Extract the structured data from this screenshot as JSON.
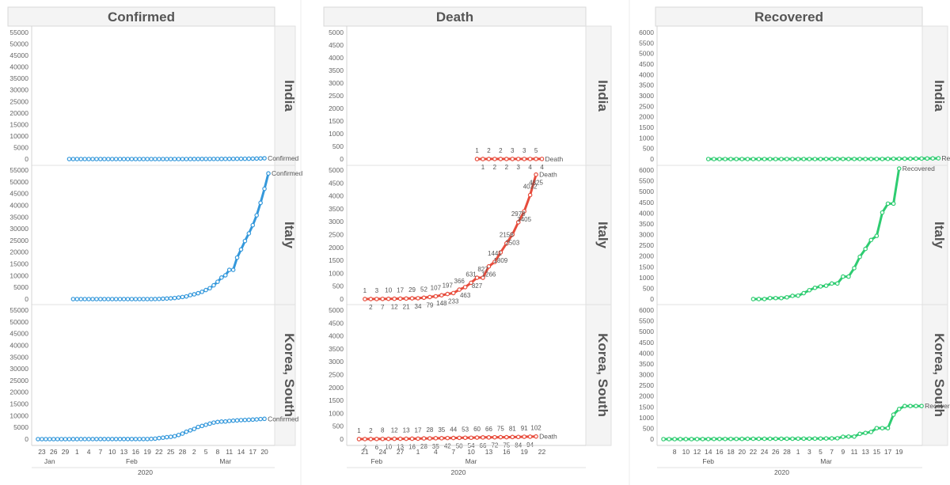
{
  "header": {
    "panels": [
      "Confirmed",
      "Death",
      "Recovered"
    ]
  },
  "rows": [
    "India",
    "Italy",
    "Korea, South"
  ],
  "colors": {
    "Confirmed": "#3498db",
    "Death": "#e74c3c",
    "Recovered": "#2ecc71"
  },
  "chart_data": [
    {
      "type": "line",
      "metric": "Confirmed",
      "title": "Confirmed",
      "ylim": [
        0,
        55000
      ],
      "yticks": [
        0,
        5000,
        10000,
        15000,
        20000,
        25000,
        30000,
        35000,
        40000,
        45000,
        50000,
        55000
      ],
      "xaxis": {
        "day_labels": [
          "23",
          "26",
          "29",
          "1",
          "4",
          "7",
          "10",
          "13",
          "16",
          "19",
          "22",
          "25",
          "28",
          "2",
          "5",
          "8",
          "11",
          "14",
          "17",
          "20"
        ],
        "month_labels": [
          "Jan",
          "Feb",
          "Mar"
        ],
        "year_label": "2020"
      },
      "series": [
        {
          "name": "India",
          "start": "2020-01-30",
          "end_label": "Confirmed",
          "values": [
            1,
            1,
            1,
            2,
            3,
            3,
            3,
            3,
            3,
            3,
            3,
            3,
            3,
            3,
            3,
            3,
            3,
            3,
            3,
            3,
            3,
            3,
            3,
            3,
            3,
            3,
            3,
            3,
            3,
            3,
            3,
            5,
            5,
            28,
            30,
            31,
            34,
            39,
            43,
            56,
            62,
            73,
            82,
            102,
            113,
            119,
            142,
            156,
            194,
            244,
            330
          ]
        },
        {
          "name": "Italy",
          "start": "2020-01-31",
          "end_label": "Confirmed",
          "values": [
            2,
            2,
            2,
            2,
            2,
            2,
            2,
            3,
            3,
            3,
            3,
            3,
            3,
            3,
            3,
            3,
            3,
            3,
            3,
            3,
            3,
            20,
            62,
            155,
            229,
            322,
            453,
            655,
            888,
            1128,
            1694,
            2036,
            2502,
            3089,
            3858,
            4636,
            5883,
            7375,
            9172,
            10149,
            12462,
            12462,
            17660,
            21157,
            24747,
            27980,
            31506,
            35713,
            41035,
            47021,
            53578
          ]
        },
        {
          "name": "Korea, South",
          "start": "2020-01-22",
          "end_label": "Confirmed",
          "values": [
            1,
            1,
            2,
            2,
            3,
            4,
            4,
            4,
            4,
            11,
            12,
            15,
            15,
            16,
            19,
            23,
            24,
            24,
            25,
            27,
            28,
            28,
            28,
            28,
            28,
            29,
            30,
            31,
            31,
            104,
            204,
            433,
            602,
            833,
            977,
            1261,
            1766,
            2337,
            3150,
            3736,
            4335,
            5186,
            5621,
            6088,
            6593,
            7041,
            7314,
            7478,
            7513,
            7755,
            7869,
            7979,
            8086,
            8162,
            8236,
            8320,
            8413,
            8565,
            8652
          ]
        }
      ]
    },
    {
      "type": "line",
      "metric": "Death",
      "title": "Death",
      "ylim": [
        0,
        5000
      ],
      "yticks": [
        0,
        500,
        1000,
        1500,
        2000,
        2500,
        3000,
        3500,
        4000,
        4500,
        5000
      ],
      "xaxis": {
        "day_labels": [
          "21",
          "24",
          "27",
          "1",
          "4",
          "7",
          "10",
          "13",
          "16",
          "19",
          "22"
        ],
        "month_labels": [
          "Feb",
          "Mar"
        ],
        "year_label": "2020"
      },
      "series": [
        {
          "name": "India",
          "start": "2020-03-11",
          "end_label": "Death",
          "values": [
            1,
            1,
            2,
            2,
            2,
            2,
            3,
            3,
            3,
            4,
            5,
            4
          ],
          "point_labels": [
            "1",
            "1",
            "2",
            "2",
            "2",
            "2",
            "3",
            "3",
            "3",
            "4",
            "5",
            "4"
          ]
        },
        {
          "name": "Italy",
          "start": "2020-02-21",
          "end_label": "Death",
          "values": [
            1,
            2,
            3,
            7,
            10,
            12,
            17,
            21,
            29,
            34,
            52,
            79,
            107,
            148,
            197,
            233,
            366,
            463,
            631,
            827,
            827,
            1266,
            1441,
            1809,
            2158,
            2503,
            2978,
            3405,
            4032,
            4825
          ],
          "point_labels": [
            "1",
            "2",
            "3",
            "7",
            "10",
            "12",
            "17",
            "21",
            "29",
            "34",
            "52",
            "79",
            "107",
            "148",
            "197",
            "233",
            "366",
            "463",
            "631",
            "827",
            "827",
            "1266",
            "1441",
            "1809",
            "2158",
            "2503",
            "2978",
            "3405",
            "4032",
            "4825"
          ]
        },
        {
          "name": "Korea, South",
          "start": "2020-02-20",
          "end_label": "Death",
          "values": [
            1,
            2,
            2,
            6,
            8,
            10,
            12,
            13,
            13,
            16,
            17,
            28,
            28,
            35,
            35,
            42,
            44,
            50,
            53,
            54,
            60,
            66,
            66,
            72,
            75,
            75,
            81,
            84,
            91,
            94,
            102
          ],
          "point_labels": [
            "1",
            "2",
            "2",
            "6",
            "8",
            "10",
            "12",
            "13",
            "13",
            "16",
            "17",
            "28",
            "28",
            "35",
            "35",
            "42",
            "44",
            "50",
            "53",
            "54",
            "60",
            "66",
            "66",
            "72",
            "75",
            "75",
            "81",
            "84",
            "91",
            "94",
            "102"
          ]
        }
      ]
    },
    {
      "type": "line",
      "metric": "Recovered",
      "title": "Recovered",
      "ylim": [
        0,
        6000
      ],
      "yticks": [
        0,
        500,
        1000,
        1500,
        2000,
        2500,
        3000,
        3500,
        4000,
        4500,
        5000,
        5500,
        6000
      ],
      "xaxis": {
        "day_labels": [
          "8",
          "10",
          "12",
          "14",
          "16",
          "18",
          "20",
          "22",
          "24",
          "26",
          "28",
          "1",
          "3",
          "5",
          "7",
          "9",
          "11",
          "13",
          "15",
          "17",
          "19"
        ],
        "month_labels": [
          "Feb",
          "Mar"
        ],
        "year_label": "2020"
      },
      "series": [
        {
          "name": "India",
          "start": "2020-02-14",
          "end_label": "Recovered",
          "values": [
            0,
            0,
            0,
            0,
            0,
            0,
            0,
            0,
            0,
            0,
            0,
            0,
            0,
            0,
            0,
            0,
            0,
            0,
            0,
            0,
            0,
            3,
            3,
            3,
            3,
            3,
            3,
            3,
            3,
            3,
            4,
            4,
            10,
            13,
            14,
            15,
            15,
            20,
            23,
            25,
            30,
            35
          ]
        },
        {
          "name": "Italy",
          "start": "2020-02-22",
          "end_label": "Recovered",
          "values": [
            1,
            1,
            3,
            45,
            46,
            46,
            83,
            149,
            160,
            276,
            414,
            523,
            589,
            622,
            724,
            724,
            1045,
            1045,
            1439,
            1966,
            2335,
            2749,
            2941,
            4025,
            4440,
            4440,
            6072
          ]
        },
        {
          "name": "Korea, South",
          "start": "2020-02-06",
          "end_label": "Recovered",
          "values": [
            0,
            0,
            1,
            1,
            1,
            1,
            2,
            3,
            3,
            7,
            7,
            7,
            9,
            9,
            10,
            16,
            16,
            16,
            16,
            16,
            17,
            17,
            18,
            18,
            22,
            22,
            22,
            24,
            26,
            30,
            34,
            41,
            108,
            118,
            118,
            247,
            288,
            333,
            510,
            510,
            510,
            1137,
            1401,
            1540,
            1540,
            1540,
            1540
          ]
        }
      ]
    }
  ]
}
